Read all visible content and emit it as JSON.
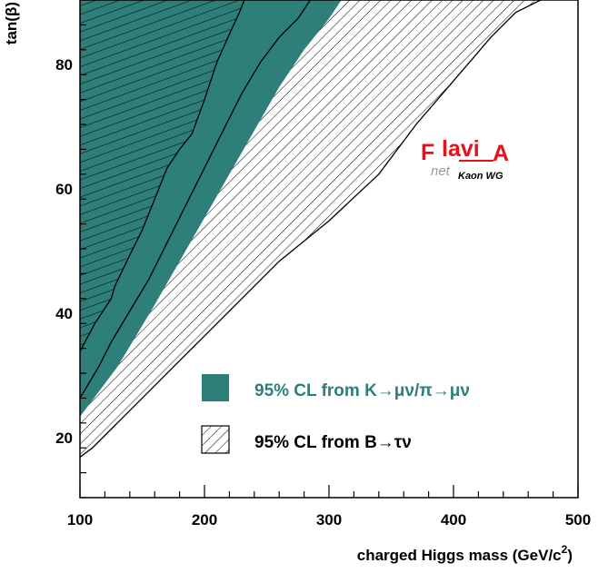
{
  "colors": {
    "teal": "#2e7f7a",
    "frame": "#000000",
    "logo_red": "#e8101a",
    "logo_grey": "#9a9a9a"
  },
  "chart_data": {
    "type": "area",
    "title": "",
    "xlabel": "charged Higgs mass (GeV/c",
    "xlabel_sup": "2",
    "xlabel_close": ")",
    "ylabel": "tan(β)",
    "xlim": [
      100,
      500
    ],
    "ylim": [
      10,
      90
    ],
    "x_ticks": [
      100,
      200,
      300,
      400,
      500
    ],
    "y_ticks": [
      20,
      40,
      60,
      80
    ],
    "x_tick_labels": [
      "100",
      "200",
      "300",
      "400",
      "500"
    ],
    "y_tick_labels": [
      "20",
      "40",
      "60",
      "80"
    ],
    "regions": {
      "k_left_boundary": [
        [
          100,
          33.5
        ],
        [
          112,
          38
        ],
        [
          125,
          42
        ],
        [
          128,
          44
        ],
        [
          140,
          49
        ],
        [
          150,
          53
        ],
        [
          160,
          58
        ],
        [
          170,
          63
        ],
        [
          180,
          66
        ],
        [
          190,
          68.5
        ],
        [
          200,
          74
        ],
        [
          210,
          80
        ],
        [
          220,
          84.5
        ],
        [
          228,
          88
        ],
        [
          232,
          90
        ]
      ],
      "k_right_boundary": [
        [
          100,
          26
        ],
        [
          115,
          31
        ],
        [
          125,
          35
        ],
        [
          140,
          40
        ],
        [
          155,
          45
        ],
        [
          170,
          51
        ],
        [
          185,
          57
        ],
        [
          200,
          63
        ],
        [
          215,
          69
        ],
        [
          230,
          75
        ],
        [
          245,
          80
        ],
        [
          260,
          84
        ],
        [
          275,
          87
        ],
        [
          285,
          90
        ]
      ],
      "k_outer_edge": [
        [
          100,
          23
        ],
        [
          115,
          27
        ],
        [
          130,
          31
        ],
        [
          145,
          36
        ],
        [
          160,
          41
        ],
        [
          180,
          48
        ],
        [
          200,
          55
        ],
        [
          220,
          62
        ],
        [
          240,
          69
        ],
        [
          260,
          76
        ],
        [
          280,
          82
        ],
        [
          300,
          87
        ],
        [
          310,
          90
        ]
      ],
      "b_boundary": [
        [
          100,
          16.5
        ],
        [
          110,
          18
        ],
        [
          130,
          22
        ],
        [
          150,
          26
        ],
        [
          175,
          31
        ],
        [
          200,
          36
        ],
        [
          230,
          42
        ],
        [
          260,
          48
        ],
        [
          300,
          54.5
        ],
        [
          340,
          62
        ],
        [
          370,
          70
        ],
        [
          400,
          77
        ],
        [
          430,
          84
        ],
        [
          450,
          88
        ],
        [
          470,
          90
        ]
      ]
    },
    "legend": [
      {
        "label": "95% CL from K→μν/π→μν",
        "style": "filled",
        "color": "#2e7f7a"
      },
      {
        "label": "95% CL from B→τν",
        "style": "hatched",
        "color": "#000000"
      }
    ],
    "logo": {
      "main_left": "F",
      "main_mid": "lavi",
      "main_right": "A",
      "sub_net": "net",
      "sub_wg": "Kaon WG"
    }
  }
}
